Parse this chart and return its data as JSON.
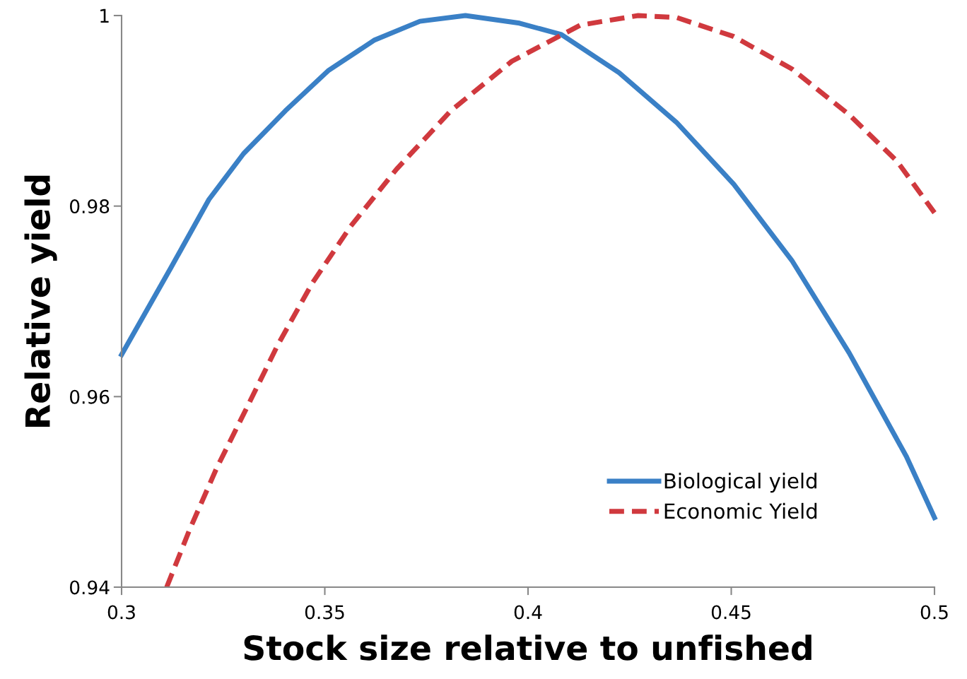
{
  "chart_data": {
    "type": "line",
    "xlabel": "Stock size relative to unfished",
    "ylabel": "Relative yield",
    "xlim": [
      0.3,
      0.5
    ],
    "xticks": [
      0.3,
      0.35,
      0.4,
      0.45,
      0.5
    ],
    "ylim": [
      0.94,
      1
    ],
    "yticks": [
      0.94,
      0.96,
      0.98,
      1
    ],
    "grid": false,
    "legend": "bottom right",
    "series": [
      {
        "name": "Biological yield",
        "color": "#3a80c6",
        "line_style": "solid",
        "x": [
          0.3,
          0.3121,
          0.3215,
          0.33,
          0.3403,
          0.3508,
          0.3621,
          0.3734,
          0.3846,
          0.3979,
          0.4082,
          0.4224,
          0.4365,
          0.4506,
          0.4649,
          0.479,
          0.4931,
          0.5
        ],
        "values": [
          0.9644,
          0.9735,
          0.9807,
          0.9855,
          0.99,
          0.9942,
          0.9974,
          0.9994,
          1.0,
          0.9992,
          0.998,
          0.994,
          0.9888,
          0.9823,
          0.9743,
          0.9646,
          0.9537,
          0.9473
        ]
      },
      {
        "name": "Economic Yield",
        "color": "#d0393e",
        "line_style": "dashed",
        "x": [
          0.3111,
          0.3168,
          0.3234,
          0.331,
          0.3384,
          0.3469,
          0.3564,
          0.3677,
          0.381,
          0.396,
          0.4129,
          0.4271,
          0.4365,
          0.4506,
          0.4649,
          0.479,
          0.4908,
          0.5
        ],
        "values": [
          0.94,
          0.9461,
          0.9525,
          0.959,
          0.9654,
          0.9719,
          0.9779,
          0.9839,
          0.99,
          0.9952,
          0.999,
          1.0,
          0.9998,
          0.9978,
          0.9944,
          0.9896,
          0.9847,
          0.9793
        ]
      }
    ]
  }
}
